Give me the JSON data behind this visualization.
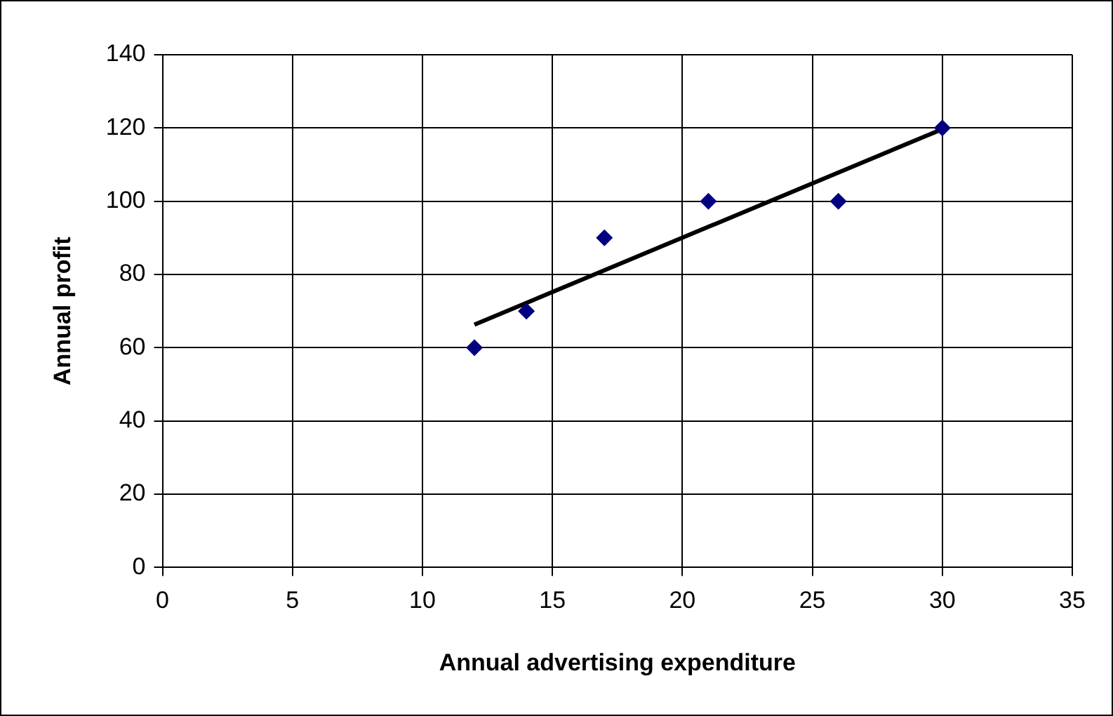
{
  "chart_data": {
    "type": "scatter",
    "xlabel": "Annual advertising expenditure",
    "ylabel": "Annual profit",
    "x": [
      12,
      14,
      17,
      21,
      26,
      30
    ],
    "marker": "diamond",
    "series": [
      {
        "color": "#000080",
        "values": [
          60,
          70,
          90,
          100,
          100,
          120
        ]
      },
      {
        "type": "line",
        "color": "#000000",
        "x": [
          12,
          30
        ],
        "values": [
          66.3,
          119.7
        ],
        "marker": "none"
      }
    ],
    "xlim": [
      0,
      35
    ],
    "xticks": [
      0,
      5,
      10,
      15,
      20,
      25,
      30,
      35
    ],
    "ylim": [
      0,
      140
    ],
    "yticks": [
      0,
      20,
      40,
      60,
      80,
      100,
      120,
      140
    ],
    "grid": true
  }
}
